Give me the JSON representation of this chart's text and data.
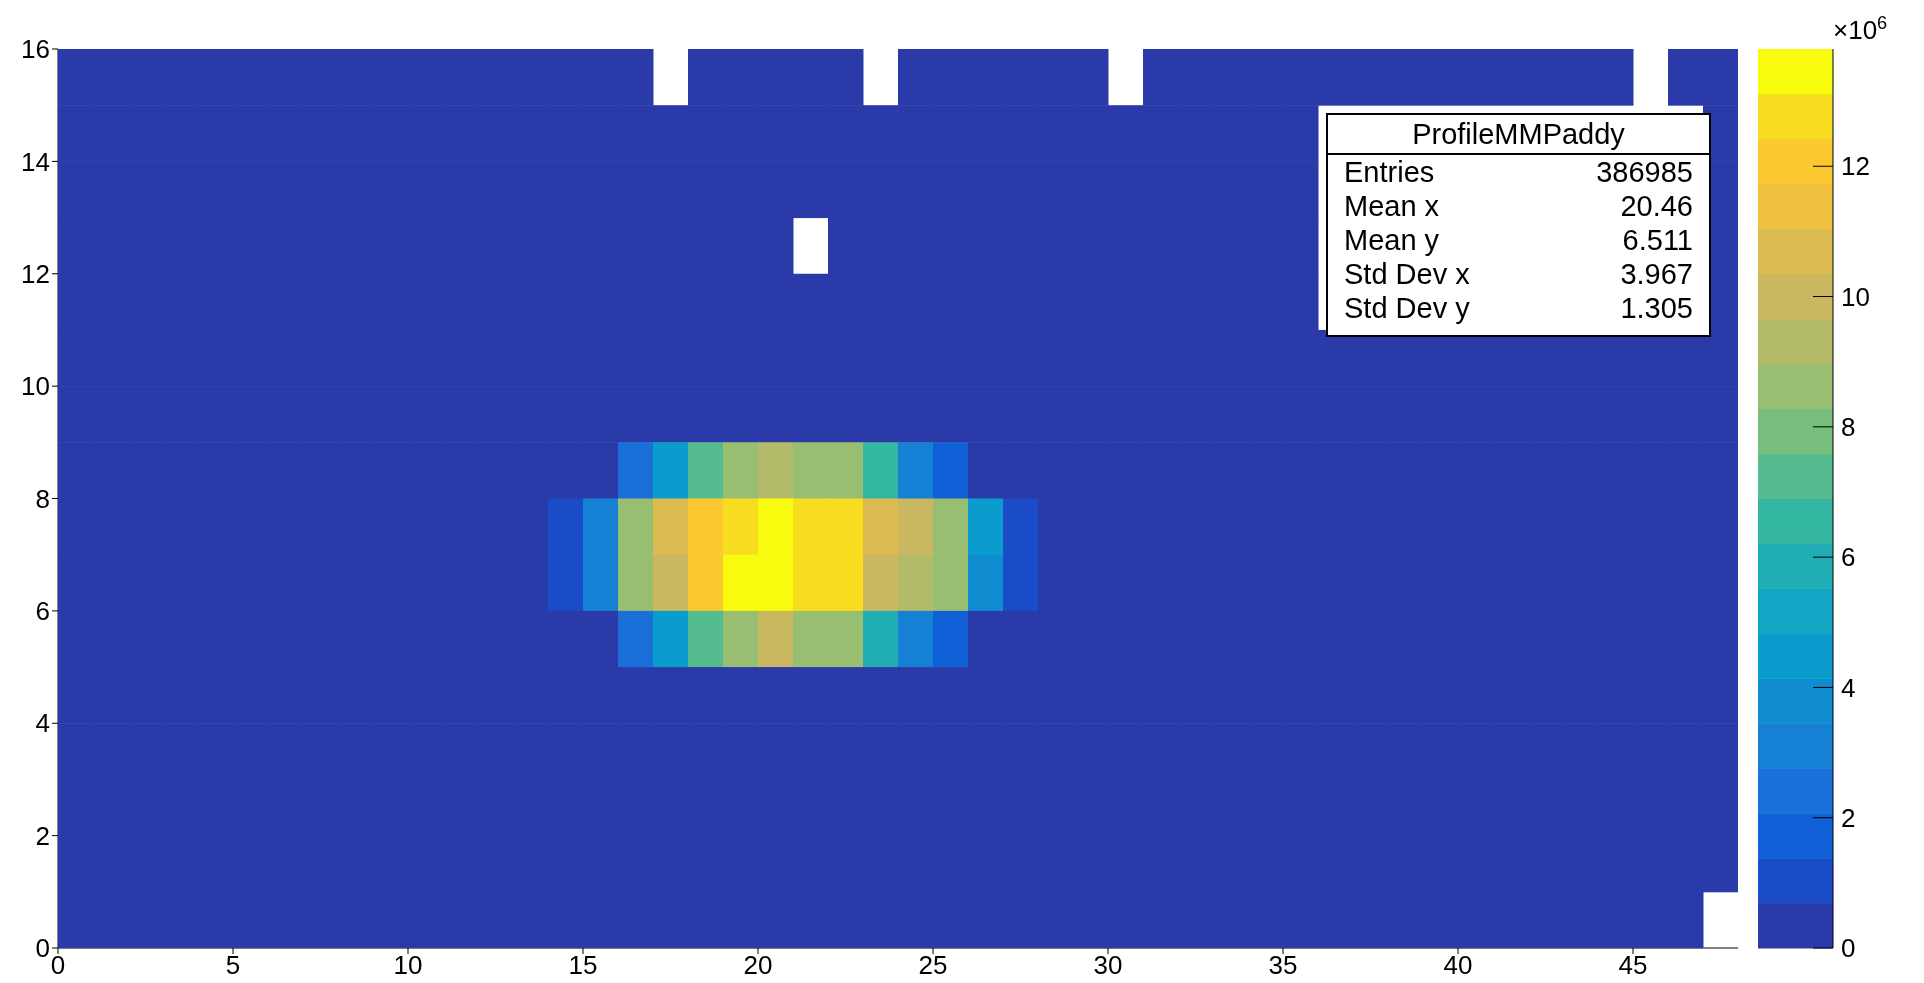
{
  "chart_data": {
    "type": "heatmap",
    "xlim": [
      0,
      48
    ],
    "xticks": [
      0,
      5,
      10,
      15,
      20,
      25,
      30,
      35,
      40,
      45
    ],
    "ylim": [
      0,
      16
    ],
    "yticks": [
      0,
      2,
      4,
      6,
      8,
      10,
      12,
      14,
      16
    ],
    "clim": [
      0,
      13.8
    ],
    "cticks": [
      0,
      2,
      4,
      6,
      8,
      10,
      12
    ],
    "clabel": "×10$^{6}$",
    "annotations": [
      "ProfileMMPaddy",
      "Entries",
      "386985",
      "Mean x",
      "20.46",
      "Mean y",
      "6.511",
      "Std Dev x",
      "3.967",
      "Std Dev y",
      "1.305"
    ],
    "cells": [
      [
        0,
        0,
        0,
        0,
        0,
        0,
        0,
        0,
        0,
        0,
        0,
        0,
        0,
        0,
        0,
        0,
        0,
        null,
        0,
        0,
        0,
        0,
        0,
        null,
        0,
        0,
        0,
        0,
        0,
        0,
        null,
        0,
        0,
        0,
        0,
        0,
        0,
        0,
        0,
        0,
        0,
        0,
        0,
        0,
        0,
        null,
        0,
        0
      ],
      [
        0,
        0,
        0,
        0,
        0,
        0,
        0,
        0,
        0,
        0,
        0,
        0,
        0,
        0,
        0,
        0,
        0,
        0,
        0,
        0,
        0,
        0,
        0,
        0,
        0,
        0,
        0,
        0,
        0,
        0,
        0,
        0,
        0,
        0,
        0,
        0,
        null,
        null,
        null,
        null,
        null,
        null,
        null,
        null,
        null,
        null,
        null,
        0
      ],
      [
        0,
        0,
        0,
        0,
        0,
        0,
        0,
        0,
        0,
        0,
        0,
        0,
        0,
        0,
        0,
        0,
        0,
        0,
        0,
        0,
        0,
        0,
        0,
        0,
        0,
        0,
        0,
        0,
        0,
        0,
        0,
        0,
        0,
        0,
        0,
        0,
        null,
        null,
        null,
        null,
        null,
        null,
        null,
        null,
        null,
        null,
        null,
        0
      ],
      [
        0,
        0,
        0,
        0,
        0,
        0,
        0,
        0,
        0,
        0,
        0,
        0,
        0,
        0,
        0,
        0,
        0,
        0,
        0,
        0,
        0,
        null,
        0,
        0,
        0,
        0,
        0,
        0,
        0,
        0,
        0,
        0,
        0,
        0,
        0,
        0,
        null,
        null,
        null,
        null,
        null,
        null,
        null,
        null,
        null,
        null,
        null,
        0
      ],
      [
        0,
        0,
        0,
        0,
        0,
        0,
        0,
        0,
        0,
        0,
        0,
        0,
        0,
        0,
        0,
        0,
        0,
        0,
        0,
        0,
        0,
        0,
        0,
        0,
        0,
        0,
        0,
        0,
        0,
        0,
        0,
        0,
        0,
        0,
        0,
        0,
        null,
        null,
        null,
        null,
        null,
        null,
        null,
        null,
        null,
        null,
        null,
        0
      ],
      [
        0,
        0,
        0,
        0,
        0,
        0,
        0,
        0,
        0,
        0,
        0,
        0,
        0,
        0,
        0,
        0,
        0,
        0,
        0,
        0,
        0,
        0,
        0,
        0,
        0,
        0,
        0,
        0,
        0,
        0,
        0,
        0,
        0,
        0,
        0,
        0,
        0,
        0,
        0,
        0,
        0,
        0,
        0,
        0,
        0,
        0,
        0,
        0
      ],
      [
        0,
        0,
        0,
        0,
        0,
        0,
        0,
        0,
        0,
        0,
        0,
        0,
        0,
        0,
        0,
        0,
        0,
        0,
        0,
        0,
        0,
        0,
        0,
        0,
        0,
        0,
        0,
        0,
        0,
        0,
        0,
        0,
        0,
        0,
        0,
        0,
        0,
        0,
        0,
        0,
        0,
        0,
        0,
        0,
        0,
        0,
        0,
        0
      ],
      [
        0,
        0,
        0,
        0,
        0,
        0,
        0,
        0,
        0,
        0,
        0,
        0,
        0,
        0,
        0,
        0,
        2.4,
        4.5,
        7.2,
        8.6,
        9.3,
        8.6,
        8.6,
        6.5,
        3.1,
        1.7,
        0,
        0,
        0,
        0,
        0,
        0,
        0,
        0,
        0,
        0,
        0,
        0,
        0,
        0,
        0,
        0,
        0,
        0,
        0,
        0,
        0,
        0
      ],
      [
        0,
        0,
        0,
        0,
        0,
        0,
        0,
        0,
        0,
        0,
        0,
        0,
        0,
        0,
        1.0,
        3.1,
        8.6,
        10.7,
        12.0,
        12.8,
        13.5,
        12.8,
        12.8,
        10.7,
        10.0,
        8.6,
        4.5,
        1.0,
        0,
        0,
        0,
        0,
        0,
        0,
        0,
        0,
        0,
        0,
        0,
        0,
        0,
        0,
        0,
        0,
        0,
        0,
        0,
        0
      ],
      [
        0,
        0,
        0,
        0,
        0,
        0,
        0,
        0,
        0,
        0,
        0,
        0,
        0,
        0,
        1.0,
        3.1,
        8.6,
        10.0,
        12.0,
        13.5,
        13.5,
        12.8,
        12.8,
        10.0,
        9.3,
        8.6,
        3.8,
        1.0,
        0,
        0,
        0,
        0,
        0,
        0,
        0,
        0,
        0,
        0,
        0,
        0,
        0,
        0,
        0,
        0,
        0,
        0,
        0,
        0
      ],
      [
        0,
        0,
        0,
        0,
        0,
        0,
        0,
        0,
        0,
        0,
        0,
        0,
        0,
        0,
        0,
        0,
        2.4,
        4.5,
        7.2,
        8.6,
        10.0,
        8.6,
        8.6,
        5.9,
        3.1,
        1.7,
        0,
        0,
        0,
        0,
        0,
        0,
        0,
        0,
        0,
        0,
        0,
        0,
        0,
        0,
        0,
        0,
        0,
        0,
        0,
        0,
        0,
        0
      ],
      [
        0,
        0,
        0,
        0,
        0,
        0,
        0,
        0,
        0,
        0,
        0,
        0,
        0,
        0,
        0,
        0,
        0,
        0,
        0,
        0,
        0,
        0,
        0,
        0,
        0,
        0,
        0,
        0,
        0,
        0,
        0,
        0,
        0,
        0,
        0,
        0,
        0,
        0,
        0,
        0,
        0,
        0,
        0,
        0,
        0,
        0,
        0,
        0
      ],
      [
        0,
        0,
        0,
        0,
        0,
        0,
        0,
        0,
        0,
        0,
        0,
        0,
        0,
        0,
        0,
        0,
        0,
        0,
        0,
        0,
        0,
        0,
        0,
        0,
        0,
        0,
        0,
        0,
        0,
        0,
        0,
        0,
        0,
        0,
        0,
        0,
        0,
        0,
        0,
        0,
        0,
        0,
        0,
        0,
        0,
        0,
        0,
        0
      ],
      [
        0,
        0,
        0,
        0,
        0,
        0,
        0,
        0,
        0,
        0,
        0,
        0,
        0,
        0,
        0,
        0,
        0,
        0,
        0,
        0,
        0,
        0,
        0,
        0,
        0,
        0,
        0,
        0,
        0,
        0,
        0,
        0,
        0,
        0,
        0,
        0,
        0,
        0,
        0,
        0,
        0,
        0,
        0,
        0,
        0,
        0,
        0,
        0
      ],
      [
        0,
        0,
        0,
        0,
        0,
        0,
        0,
        0,
        0,
        0,
        0,
        0,
        0,
        0,
        0,
        0,
        0,
        0,
        0,
        0,
        0,
        0,
        0,
        0,
        0,
        0,
        0,
        0,
        0,
        0,
        0,
        0,
        0,
        0,
        0,
        0,
        0,
        0,
        0,
        0,
        0,
        0,
        0,
        0,
        0,
        0,
        0,
        0
      ],
      [
        0,
        0,
        0,
        0,
        0,
        0,
        0,
        0,
        0,
        0,
        0,
        0,
        0,
        0,
        0,
        0,
        0,
        0,
        0,
        0,
        0,
        0,
        0,
        0,
        0,
        0,
        0,
        0,
        0,
        0,
        0,
        0,
        0,
        0,
        0,
        0,
        0,
        0,
        0,
        0,
        0,
        0,
        0,
        0,
        0,
        0,
        0,
        null
      ]
    ]
  }
}
